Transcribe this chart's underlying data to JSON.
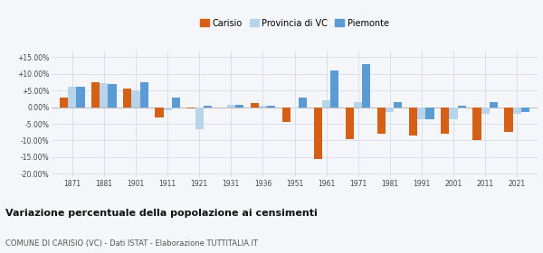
{
  "years": [
    1871,
    1881,
    1901,
    1911,
    1921,
    1931,
    1936,
    1951,
    1961,
    1971,
    1981,
    1991,
    2001,
    2011,
    2021
  ],
  "carisio": [
    3.0,
    7.5,
    5.5,
    -3.0,
    -0.5,
    0.0,
    1.2,
    -4.5,
    -15.5,
    -9.5,
    -8.0,
    -8.5,
    -8.0,
    -10.0,
    -7.5
  ],
  "provincia_vc": [
    6.2,
    7.2,
    5.0,
    -1.0,
    -6.5,
    0.7,
    0.5,
    -0.5,
    2.0,
    1.5,
    -1.5,
    -3.5,
    -3.5,
    -2.0,
    -2.0
  ],
  "piemonte": [
    6.2,
    7.0,
    7.5,
    3.0,
    0.5,
    0.7,
    0.5,
    3.0,
    11.0,
    13.0,
    1.5,
    -3.5,
    0.5,
    1.5,
    -1.5
  ],
  "color_carisio": "#d45f15",
  "color_provincia": "#b8d4ea",
  "color_piemonte": "#5b9bd5",
  "title": "Variazione percentuale della popolazione ai censimenti",
  "subtitle": "COMUNE DI CARISIO (VC) - Dati ISTAT - Elaborazione TUTTITALIA.IT",
  "ylim": [
    -21,
    17
  ],
  "yticks": [
    -20.0,
    -15.0,
    -10.0,
    -5.0,
    0.0,
    5.0,
    10.0,
    15.0
  ],
  "background_color": "#f5f6fa"
}
